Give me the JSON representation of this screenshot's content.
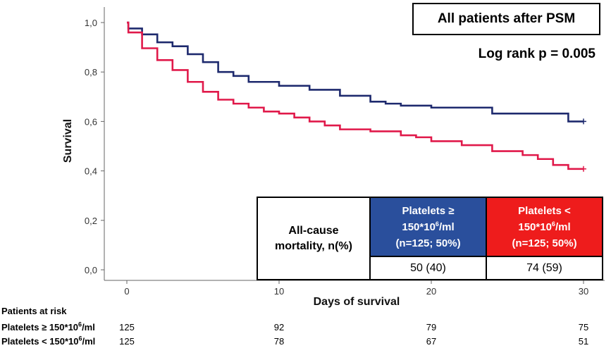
{
  "chart_data": {
    "type": "line",
    "title": "All patients after PSM",
    "annotation": "Log rank p = 0.005",
    "xlabel": "Days of survival",
    "ylabel": "Survival",
    "xlim": [
      0,
      30
    ],
    "ylim": [
      0.0,
      1.0
    ],
    "x_ticks": [
      "0",
      "10",
      "20",
      "30"
    ],
    "y_ticks": [
      "0,0",
      "0,2",
      "0,4",
      "0,6",
      "0,8",
      "1,0"
    ],
    "series": [
      {
        "color": "#1e2a6e",
        "x": [
          0,
          0.1,
          1,
          2,
          3,
          4,
          5,
          6,
          7,
          8,
          10,
          12,
          14,
          16,
          17,
          18,
          20,
          24,
          29,
          30
        ],
        "y": [
          1.0,
          0.976,
          0.952,
          0.92,
          0.904,
          0.872,
          0.84,
          0.8,
          0.784,
          0.76,
          0.744,
          0.728,
          0.704,
          0.68,
          0.672,
          0.664,
          0.656,
          0.632,
          0.6,
          0.6
        ]
      },
      {
        "color": "#e0194a",
        "x": [
          0,
          0.1,
          1,
          2,
          3,
          4,
          5,
          6,
          7,
          8,
          9,
          10,
          11,
          12,
          13,
          14,
          16,
          18,
          19,
          20,
          22,
          24,
          26,
          27,
          28,
          29,
          30
        ],
        "y": [
          1.0,
          0.96,
          0.896,
          0.848,
          0.808,
          0.76,
          0.72,
          0.688,
          0.672,
          0.656,
          0.64,
          0.632,
          0.616,
          0.6,
          0.584,
          0.568,
          0.56,
          0.544,
          0.536,
          0.52,
          0.504,
          0.48,
          0.464,
          0.448,
          0.424,
          0.408,
          0.408
        ]
      }
    ],
    "mortality_table": {
      "label_line1": "All-cause",
      "label_line2": "mortality, n(%)",
      "blue_l1": "Platelets ≥",
      "blue_l2a": "150*10",
      "blue_l2sup": "6",
      "blue_l2b": "/ml",
      "blue_l3": "(n=125; 50%)",
      "red_l1": "Platelets <",
      "red_l2a": "150*10",
      "red_l2sup": "6",
      "red_l2b": "/ml",
      "red_l3": "(n=125; 50%)",
      "blue_value": "50 (40)",
      "red_value": "74 (59)"
    },
    "risk_table": {
      "title": "Patients at risk",
      "row1_label_a": "Platelets ≥ 150*10",
      "row1_label_sup": "6",
      "row1_label_b": "/ml",
      "row1_values": [
        "125",
        "92",
        "79",
        "75"
      ],
      "row2_label_a": "Platelets < 150*10",
      "row2_label_sup": "6",
      "row2_label_b": "/ml",
      "row2_values": [
        "125",
        "78",
        "67",
        "51"
      ]
    }
  }
}
